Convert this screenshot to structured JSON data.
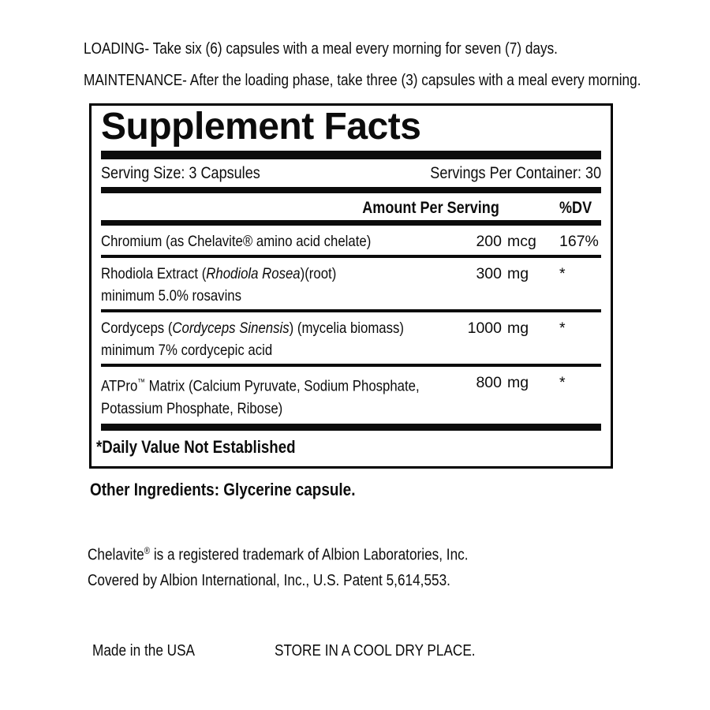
{
  "directions": {
    "loading": "LOADING- Take six (6) capsules with a meal every morning for seven (7) days.",
    "maintenance": "MAINTENANCE- After the loading phase, take three (3) capsules with a meal every morning."
  },
  "supplement_facts": {
    "title": "Supplement Facts",
    "serving_size": "Serving Size: 3 Capsules",
    "servings_per_container": "Servings Per Container: 30",
    "columns": {
      "amount": "Amount Per Serving",
      "dv": "%DV"
    },
    "rows": [
      {
        "name": "Chromium (as Chelavite® amino acid chelate)",
        "amount_value": "200",
        "amount_unit": "mcg",
        "dv": "167%"
      },
      {
        "name_prefix": "Rhodiola Extract (",
        "name_italic": "Rhodiola Rosea",
        "name_suffix": ")(root)",
        "detail": "minimum 5.0% rosavins",
        "amount_value": "300",
        "amount_unit": "mg",
        "dv": "*"
      },
      {
        "name_prefix": "Cordyceps (",
        "name_italic": "Cordyceps Sinensis",
        "name_suffix": ") (mycelia biomass)",
        "detail": "minimum 7% cordycepic acid",
        "amount_value": "1000",
        "amount_unit": "mg",
        "dv": "*"
      },
      {
        "name_prefix": "ATPro",
        "name_sup": "™",
        "name_suffix": " Matrix (Calcium Pyruvate, Sodium Phosphate,",
        "detail": "Potassium Phosphate, Ribose)",
        "amount_value": "800",
        "amount_unit": "mg",
        "dv": "*"
      }
    ],
    "footnote": "*Daily Value Not Established"
  },
  "other_ingredients": "Other Ingredients: Glycerine capsule.",
  "trademark": {
    "line1_name": "Chelavite",
    "line1_reg": "®",
    "line1_rest": " is a registered trademark of Albion Laboratories, Inc.",
    "line2": "Covered by Albion International, Inc., U.S. Patent 5,614,553."
  },
  "footer": {
    "made_in": "Made in the USA",
    "storage": "STORE IN A COOL DRY PLACE."
  },
  "colors": {
    "ink": "#0c0c0c",
    "background": "#ffffff"
  }
}
